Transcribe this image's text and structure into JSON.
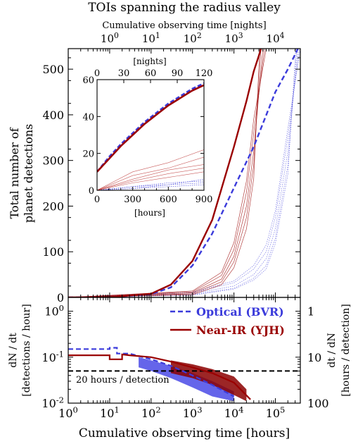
{
  "chart_data": [
    {
      "panel": "main",
      "type": "line",
      "title": "TOIs spanning the radius valley",
      "top_axis": {
        "label": "Cumulative observing time [nights]",
        "scale": "log",
        "ticks": [
          "10^0",
          "10^1",
          "10^2",
          "10^3",
          "10^4"
        ]
      },
      "ylabel": [
        "Total number of",
        "planet detections"
      ],
      "xscale": "log",
      "xlim": [
        1,
        400000
      ],
      "ylim": [
        0,
        545
      ],
      "yticks": [
        0,
        100,
        200,
        300,
        400,
        500
      ],
      "series": [
        {
          "name": "Optical (BVR)",
          "style": "dashed",
          "color": "#3b3bdb",
          "x": [
            1,
            10,
            100,
            300,
            1000,
            3000,
            10000,
            30000,
            100000,
            200000,
            350000
          ],
          "y": [
            0,
            0.5,
            7,
            22,
            70,
            140,
            240,
            330,
            450,
            500,
            545
          ]
        },
        {
          "name": "Near-IR (YJH)",
          "style": "solid",
          "color": "#9a0000",
          "x": [
            1,
            10,
            100,
            300,
            1000,
            3000,
            10000,
            20000,
            30000,
            40000,
            45000
          ],
          "y": [
            0,
            0.5,
            8,
            28,
            80,
            170,
            330,
            430,
            495,
            530,
            545
          ]
        }
      ],
      "realizations_note": "thin lines: individual simulated realizations per band",
      "optical_realizations": [
        {
          "x": [
            1,
            1000,
            10000,
            30000,
            60000,
            100000,
            200000,
            350000
          ],
          "y": [
            0,
            8,
            25,
            50,
            85,
            150,
            320,
            545
          ]
        },
        {
          "x": [
            1,
            1000,
            10000,
            30000,
            60000,
            100000,
            200000,
            380000
          ],
          "y": [
            0,
            10,
            32,
            62,
            100,
            175,
            350,
            545
          ]
        },
        {
          "x": [
            1,
            1000,
            10000,
            30000,
            60000,
            100000,
            200000,
            330000
          ],
          "y": [
            0,
            6,
            20,
            42,
            70,
            130,
            290,
            545
          ]
        },
        {
          "x": [
            1,
            1000,
            10000,
            30000,
            60000,
            100000,
            200000,
            400000
          ],
          "y": [
            0,
            12,
            36,
            70,
            115,
            190,
            370,
            545
          ]
        },
        {
          "x": [
            1,
            1000,
            10000,
            30000,
            60000,
            100000,
            200000,
            310000
          ],
          "y": [
            0,
            5,
            18,
            38,
            62,
            118,
            270,
            545
          ]
        }
      ],
      "nir_realizations": [
        {
          "x": [
            1,
            1000,
            5000,
            10000,
            20000,
            30000,
            50000
          ],
          "y": [
            0,
            10,
            40,
            90,
            200,
            320,
            545
          ]
        },
        {
          "x": [
            1,
            1000,
            5000,
            10000,
            20000,
            30000,
            55000
          ],
          "y": [
            0,
            12,
            48,
            105,
            230,
            360,
            545
          ]
        },
        {
          "x": [
            1,
            1000,
            5000,
            10000,
            20000,
            30000,
            45000
          ],
          "y": [
            0,
            8,
            34,
            78,
            175,
            290,
            545
          ]
        },
        {
          "x": [
            1,
            1000,
            5000,
            10000,
            20000,
            30000,
            60000
          ],
          "y": [
            0,
            14,
            55,
            120,
            255,
            390,
            545
          ]
        },
        {
          "x": [
            1,
            1000,
            5000,
            10000,
            20000,
            30000,
            42000
          ],
          "y": [
            0,
            6,
            28,
            65,
            150,
            260,
            545
          ]
        }
      ]
    },
    {
      "panel": "inset",
      "type": "line",
      "top_axis": {
        "label": "[nights]",
        "ticks": [
          0,
          30,
          60,
          90,
          120
        ]
      },
      "xlabel": "[hours]",
      "xlim": [
        0,
        900
      ],
      "ylim": [
        0,
        60
      ],
      "xticks": [
        0,
        300,
        600,
        900
      ],
      "yticks": [
        0,
        20,
        40,
        60
      ],
      "series": [
        {
          "name": "Optical (BVR)",
          "style": "dashed",
          "color": "#3b3bdb",
          "x": [
            0,
            100,
            200,
            300,
            400,
            500,
            600,
            700,
            800,
            900
          ],
          "y": [
            10,
            18,
            25,
            31,
            37,
            42,
            47,
            51,
            55,
            58
          ]
        },
        {
          "name": "Near-IR (YJH)",
          "style": "solid",
          "color": "#9a0000",
          "x": [
            0,
            100,
            200,
            300,
            400,
            500,
            600,
            700,
            800,
            900
          ],
          "y": [
            10,
            17,
            24,
            30,
            36,
            41,
            46,
            50,
            54,
            57
          ]
        }
      ],
      "nir_realizations": [
        {
          "x": [
            0,
            300,
            600,
            900
          ],
          "y": [
            0,
            4,
            7,
            10
          ]
        },
        {
          "x": [
            0,
            300,
            600,
            900
          ],
          "y": [
            0,
            6,
            11,
            14
          ]
        },
        {
          "x": [
            0,
            300,
            600,
            900
          ],
          "y": [
            0,
            8,
            12,
            18
          ]
        },
        {
          "x": [
            0,
            300,
            600,
            900
          ],
          "y": [
            0,
            10,
            15,
            22
          ]
        },
        {
          "x": [
            0,
            300,
            600,
            900
          ],
          "y": [
            0,
            5,
            9,
            12
          ]
        }
      ],
      "optical_realizations": [
        {
          "x": [
            0,
            300,
            600,
            900
          ],
          "y": [
            0,
            1,
            2,
            3
          ]
        },
        {
          "x": [
            0,
            300,
            600,
            900
          ],
          "y": [
            0,
            2,
            4,
            5
          ]
        },
        {
          "x": [
            0,
            300,
            600,
            900
          ],
          "y": [
            0,
            1,
            3,
            6
          ]
        },
        {
          "x": [
            0,
            300,
            600,
            900
          ],
          "y": [
            0,
            2,
            3,
            4
          ]
        }
      ]
    },
    {
      "panel": "rate",
      "type": "line",
      "xlabel": "Cumulative observing time [hours]",
      "xscale": "log",
      "yscale": "log",
      "xlim": [
        1,
        400000
      ],
      "ylim": [
        0.01,
        2
      ],
      "ylabel": [
        "dN / dt",
        "[detections / hour]"
      ],
      "right_axis": {
        "label": [
          "dt / dN",
          "[hours / detection]"
        ],
        "ticks": [
          "1",
          "10",
          "100"
        ]
      },
      "xticks": [
        "10^0",
        "10^1",
        "10^2",
        "10^3",
        "10^4",
        "10^5"
      ],
      "yticks": [
        "10^-2",
        "10^-1",
        "10^0"
      ],
      "threshold": {
        "value": 0.05,
        "label": "20 hours / detection"
      },
      "legend": {
        "placement": "top-right"
      },
      "series": [
        {
          "name": "Optical (BVR)",
          "style": "dashed",
          "color": "#3b3bdb",
          "x": [
            1,
            5,
            5,
            10,
            10,
            15,
            15,
            30,
            100,
            300,
            1000,
            3000,
            10000
          ],
          "y": [
            0.15,
            0.15,
            0.15,
            0.15,
            0.16,
            0.16,
            0.12,
            0.12,
            0.09,
            0.065,
            0.04,
            0.025,
            0.014
          ]
        },
        {
          "name": "Near-IR (YJH)",
          "style": "solid",
          "color": "#9a0000",
          "x": [
            1,
            10,
            10,
            20,
            20,
            30,
            100,
            300,
            1000,
            3000,
            10000,
            25000
          ],
          "y": [
            0.11,
            0.11,
            0.09,
            0.09,
            0.115,
            0.11,
            0.1,
            0.08,
            0.06,
            0.045,
            0.028,
            0.012
          ]
        }
      ],
      "optical_scatter_band": {
        "x": [
          50,
          100,
          300,
          1000,
          3000,
          10000
        ],
        "y_low": [
          0.06,
          0.05,
          0.035,
          0.022,
          0.014,
          0.011
        ],
        "y_high": [
          0.1,
          0.085,
          0.065,
          0.045,
          0.03,
          0.018
        ]
      },
      "nir_scatter_band": {
        "x": [
          300,
          1000,
          3000,
          10000,
          20000
        ],
        "y_low": [
          0.045,
          0.035,
          0.025,
          0.015,
          0.011
        ],
        "y_high": [
          0.085,
          0.07,
          0.055,
          0.038,
          0.02
        ]
      }
    }
  ]
}
